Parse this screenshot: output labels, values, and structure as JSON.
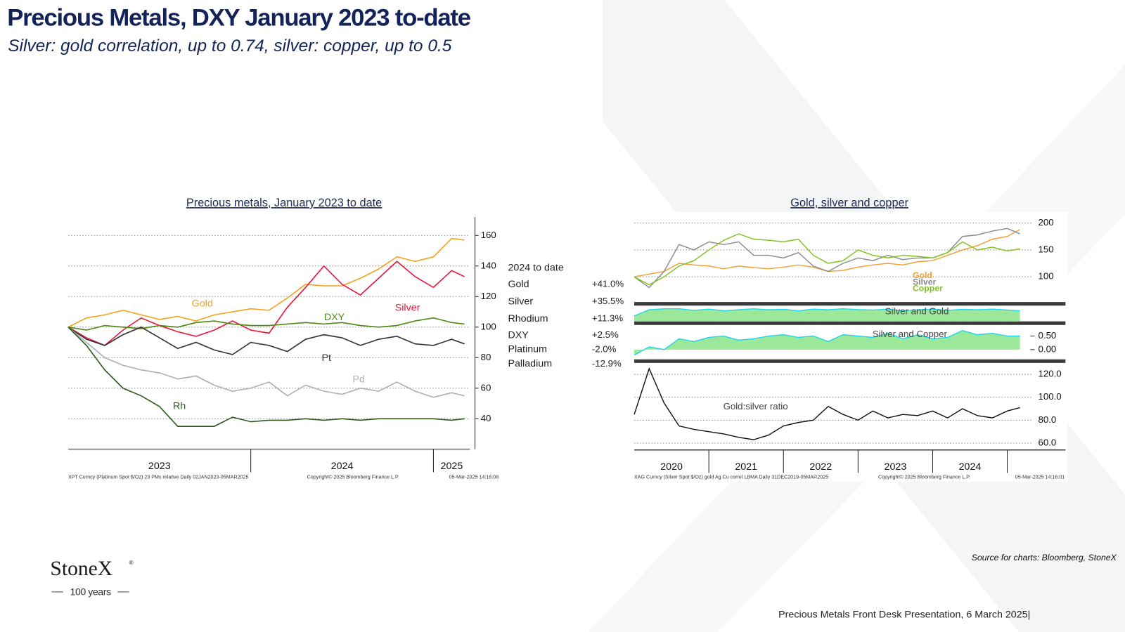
{
  "header": {
    "title": "Precious Metals, DXY January 2023 to-date",
    "subtitle": "Silver: gold correlation, up to 0.74, silver: copper, up to 0.5"
  },
  "logo": {
    "name": "StoneX",
    "mark": "®",
    "tagline": "100 years"
  },
  "source": "Source for charts: Bloomberg, StoneX",
  "footer": "Precious Metals Front Desk Presentation, 6 March 2025|",
  "chart_data": [
    {
      "type": "line",
      "title": "Precious metals, January 2023 to date",
      "x": [
        2023.0,
        2023.1,
        2023.2,
        2023.3,
        2023.4,
        2023.5,
        2023.6,
        2023.7,
        2023.8,
        2023.9,
        2024.0,
        2024.1,
        2024.2,
        2024.3,
        2024.4,
        2024.5,
        2024.6,
        2024.7,
        2024.8,
        2024.9,
        2025.0,
        2025.1,
        2025.17
      ],
      "xlim": [
        2023,
        2025.2
      ],
      "xticks": [
        {
          "value": 2023.5,
          "label": "2023"
        },
        {
          "value": 2024.5,
          "label": "2024"
        },
        {
          "value": 2025.1,
          "label": "2025"
        }
      ],
      "ylim": [
        20,
        172
      ],
      "yticks": [
        40,
        60,
        80,
        100,
        120,
        140,
        160
      ],
      "grid": true,
      "series": [
        {
          "name": "Gold",
          "color": "#f5a21f",
          "values": [
            100,
            106,
            108,
            111,
            108,
            105,
            107,
            104,
            108,
            110,
            112,
            111,
            119,
            128,
            127,
            127,
            132,
            138,
            146,
            143,
            146,
            158,
            157
          ]
        },
        {
          "name": "Silver",
          "color": "#e8173c",
          "values": [
            100,
            93,
            88,
            98,
            106,
            101,
            97,
            94,
            98,
            104,
            98,
            96,
            113,
            126,
            140,
            128,
            121,
            132,
            143,
            133,
            126,
            137,
            133
          ]
        },
        {
          "name": "DXY",
          "color": "#4f8a10",
          "values": [
            100,
            98,
            101,
            100,
            99,
            101,
            100,
            103,
            104,
            102,
            101,
            101,
            102,
            103,
            102,
            103,
            101,
            100,
            101,
            104,
            106,
            103,
            102
          ]
        },
        {
          "name": "Pt",
          "color": "#333333",
          "values": [
            100,
            92,
            88,
            95,
            100,
            93,
            86,
            90,
            85,
            82,
            90,
            88,
            84,
            92,
            95,
            93,
            88,
            92,
            94,
            89,
            88,
            92,
            89
          ]
        },
        {
          "name": "Pd",
          "color": "#aab0b8",
          "values": [
            100,
            90,
            80,
            75,
            72,
            70,
            66,
            68,
            62,
            58,
            60,
            64,
            55,
            62,
            58,
            56,
            60,
            58,
            64,
            58,
            54,
            57,
            55
          ]
        },
        {
          "name": "Rh",
          "color": "#2e5a1c",
          "values": [
            100,
            88,
            72,
            60,
            55,
            48,
            35,
            35,
            35,
            41,
            38,
            39,
            39,
            40,
            39,
            40,
            39,
            40,
            40,
            40,
            40,
            39,
            40
          ]
        }
      ],
      "table": {
        "title": "2024 to date",
        "rows": [
          [
            "Gold",
            "+41.0%"
          ],
          [
            "Silver",
            "+35.5%"
          ],
          [
            "Rhodium",
            "+11.3%"
          ],
          [
            "DXY",
            "+2.5%"
          ],
          [
            "Platinum",
            "-2.0%"
          ],
          [
            "Palladium",
            "-12.9%"
          ]
        ]
      },
      "notes": [
        "XPT Curncy (Platinum Spot $/Oz) 23 PMs relative  Daily 02JAN2023-05MAR2025",
        "Copyright© 2025 Bloomberg Finance L.P.",
        "05-Mar-2025 14:16:08"
      ]
    },
    {
      "type": "multi-panel",
      "title": "Gold, silver and copper",
      "x": [
        2020.0,
        2020.2,
        2020.4,
        2020.6,
        2020.8,
        2021.0,
        2021.2,
        2021.4,
        2021.6,
        2021.8,
        2022.0,
        2022.2,
        2022.4,
        2022.6,
        2022.8,
        2023.0,
        2023.2,
        2023.4,
        2023.6,
        2023.8,
        2024.0,
        2024.2,
        2024.4,
        2024.6,
        2024.8,
        2025.0,
        2025.17
      ],
      "xlim": [
        2020,
        2025.78
      ],
      "xticks": [
        {
          "value": 2020.5,
          "label": "2020"
        },
        {
          "value": 2021.5,
          "label": "2021"
        },
        {
          "value": 2022.5,
          "label": "2022"
        },
        {
          "value": 2023.5,
          "label": "2023"
        },
        {
          "value": 2024.5,
          "label": "2024"
        }
      ],
      "panels": [
        {
          "type": "line",
          "ylim": [
            55,
            215
          ],
          "yticks": [
            100,
            150,
            200
          ],
          "grid": true,
          "legend": "bottom-right",
          "series": [
            {
              "name": "Gold",
              "color": "#f0a030",
              "values": [
                100,
                105,
                110,
                125,
                122,
                120,
                115,
                120,
                117,
                115,
                118,
                122,
                118,
                110,
                112,
                118,
                122,
                125,
                122,
                128,
                130,
                140,
                150,
                158,
                170,
                175,
                188
              ]
            },
            {
              "name": "Silver",
              "color": "#8a8a8a",
              "values": [
                100,
                80,
                110,
                160,
                150,
                165,
                160,
                165,
                140,
                140,
                135,
                145,
                120,
                110,
                125,
                135,
                130,
                140,
                132,
                135,
                135,
                145,
                175,
                178,
                185,
                190,
                180
              ]
            },
            {
              "name": "Copper",
              "color": "#7fc31c",
              "values": [
                100,
                85,
                100,
                120,
                130,
                150,
                168,
                180,
                170,
                168,
                165,
                170,
                140,
                125,
                130,
                150,
                140,
                135,
                140,
                138,
                135,
                145,
                165,
                150,
                155,
                148,
                152
              ]
            }
          ]
        },
        {
          "type": "area",
          "label": "Silver and Gold",
          "ylim": [
            0.3,
            1.0
          ],
          "yticks": [],
          "grid": false,
          "series": [
            {
              "name": "Silver and Gold",
              "color": "#22d3ee",
              "fill": "#9be89b",
              "values": [
                0.55,
                0.85,
                0.9,
                0.9,
                0.82,
                0.88,
                0.8,
                0.85,
                0.9,
                0.85,
                0.87,
                0.8,
                0.88,
                0.85,
                0.9,
                0.86,
                0.84,
                0.88,
                0.8,
                0.85,
                0.88,
                0.82,
                0.87,
                0.85,
                0.88,
                0.84,
                0.8
              ]
            }
          ]
        },
        {
          "type": "area",
          "label": "Silver and Copper",
          "ylim": [
            -0.32,
            0.87
          ],
          "yticks": [
            {
              "value": 0.5,
              "label": "0.50"
            },
            {
              "value": 0,
              "label": "0.00"
            }
          ],
          "grid": false,
          "series": [
            {
              "name": "Silver and Copper",
              "color": "#22d3ee",
              "fill": "#9be89b",
              "values": [
                -0.2,
                0.1,
                0.0,
                0.4,
                0.3,
                0.45,
                0.5,
                0.35,
                0.4,
                0.5,
                0.55,
                0.45,
                0.5,
                0.3,
                0.55,
                0.5,
                0.45,
                0.6,
                0.4,
                0.55,
                0.4,
                0.45,
                0.7,
                0.55,
                0.6,
                0.5,
                0.5
              ]
            }
          ]
        },
        {
          "type": "line",
          "label": "Gold:silver ratio",
          "ylim": [
            54,
            129
          ],
          "yticks": [
            {
              "value": 60,
              "label": "60.0"
            },
            {
              "value": 80,
              "label": "80.0"
            },
            {
              "value": 100,
              "label": "100.0"
            },
            {
              "value": 120,
              "label": "120.0"
            }
          ],
          "grid": true,
          "series": [
            {
              "name": "Gold:silver ratio",
              "color": "#111111",
              "values": [
                85,
                125,
                95,
                75,
                72,
                70,
                68,
                65,
                63,
                67,
                75,
                78,
                80,
                92,
                85,
                80,
                88,
                82,
                85,
                84,
                88,
                82,
                90,
                84,
                82,
                88,
                91
              ]
            }
          ]
        }
      ],
      "notes": [
        "XAG Curncy (Silver Spot $/Oz) gold Ag Cu correl LBMA  Daily 31DEC2019-05MAR2025",
        "Copyright© 2025 Bloomberg Finance L.P.",
        "05-Mar-2025 14:16:01"
      ]
    }
  ]
}
